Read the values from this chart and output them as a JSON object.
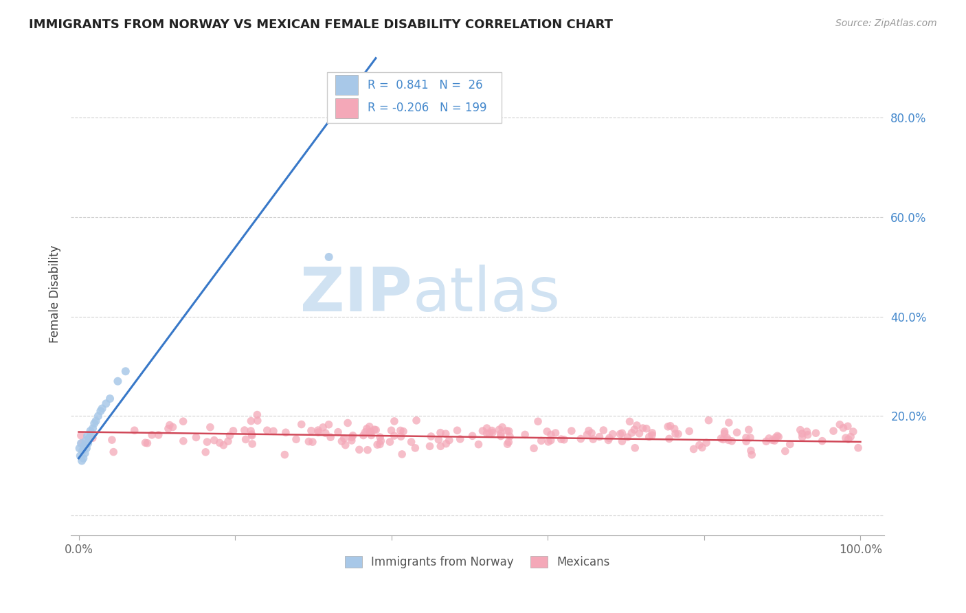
{
  "title": "IMMIGRANTS FROM NORWAY VS MEXICAN FEMALE DISABILITY CORRELATION CHART",
  "source": "Source: ZipAtlas.com",
  "ylabel": "Female Disability",
  "legend1_R": "0.841",
  "legend1_N": "26",
  "legend2_R": "-0.206",
  "legend2_N": "199",
  "blue_color": "#a8c8e8",
  "pink_color": "#f4a8b8",
  "line_blue": "#3878c8",
  "line_pink": "#d04858",
  "watermark_zip": "ZIP",
  "watermark_atlas": "atlas",
  "background_color": "#ffffff",
  "grid_color": "#cccccc",
  "ytick_vals": [
    0.0,
    0.2,
    0.4,
    0.6,
    0.8
  ],
  "ytick_labels": [
    "",
    "20.0%",
    "40.0%",
    "60.0%",
    "80.0%"
  ],
  "xtick_vals": [
    0.0,
    0.2,
    0.4,
    0.6,
    0.8,
    1.0
  ],
  "xtick_labels": [
    "0.0%",
    "",
    "",
    "",
    "",
    "100.0%"
  ],
  "blue_line_x": [
    0.0,
    0.38
  ],
  "blue_line_y": [
    0.115,
    0.92
  ],
  "pink_line_x": [
    0.0,
    1.0
  ],
  "pink_line_y": [
    0.168,
    0.148
  ]
}
